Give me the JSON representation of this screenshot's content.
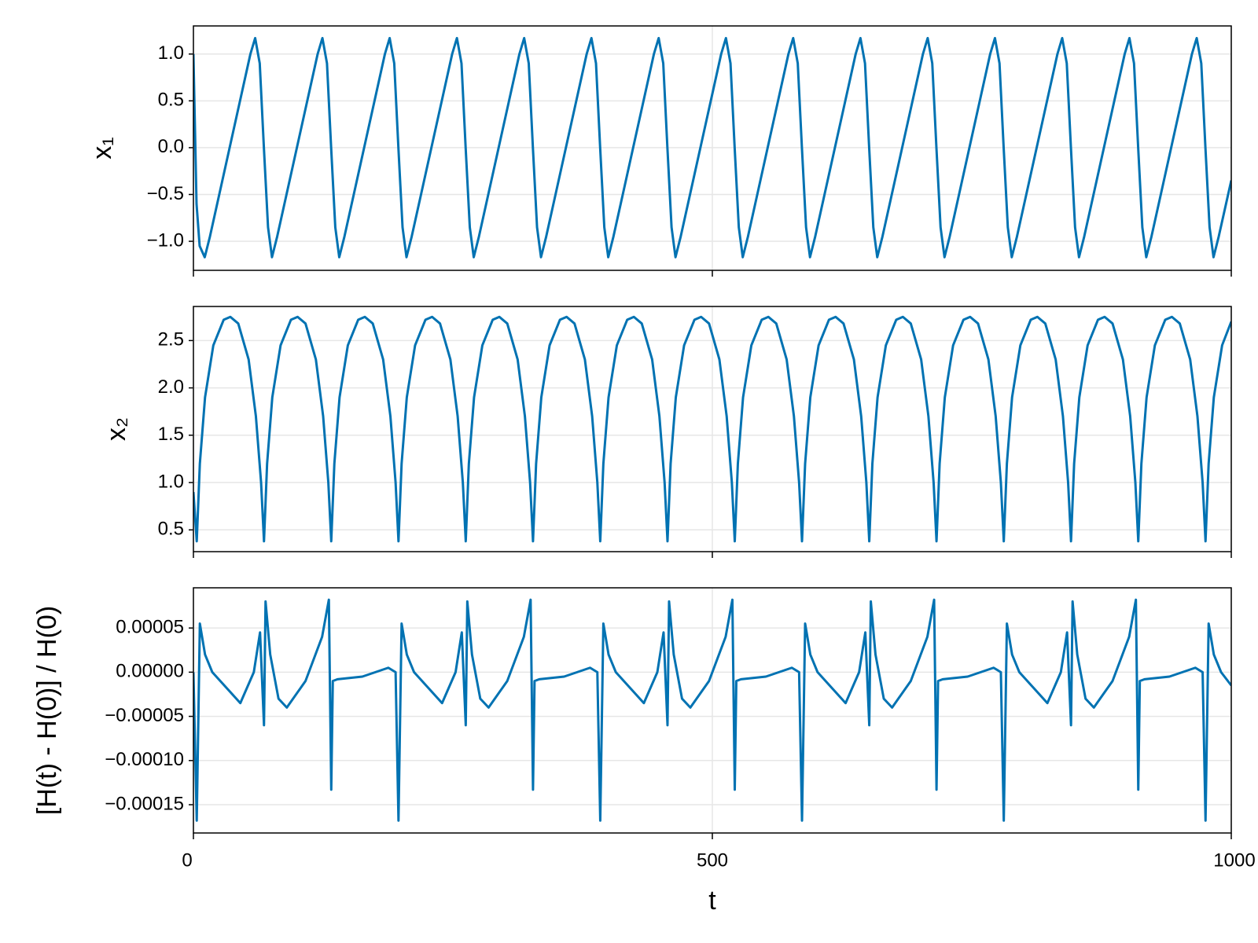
{
  "chart_data": [
    {
      "type": "line",
      "ylabel": "x₁",
      "color": "#0072b2",
      "grid": true,
      "xlim": [
        0,
        1000
      ],
      "ylim": [
        -1.31,
        1.3
      ],
      "yticks": [
        {
          "value": 1.0,
          "label": "1.0"
        },
        {
          "value": 0.5,
          "label": "0.5"
        },
        {
          "value": 0.0,
          "label": "0.0"
        },
        {
          "value": -0.5,
          "label": "−0.5"
        },
        {
          "value": -1.0,
          "label": "−1.0"
        }
      ],
      "x": [
        0,
        3,
        6,
        10.9,
        15.9,
        35.9,
        54.9,
        59.5,
        63.9,
        67.9,
        71.9,
        75.7,
        80.7,
        100.7,
        119.7,
        124.3,
        128.7,
        132.7,
        136.7,
        140.5,
        145.5,
        165.5,
        184.5,
        189.1,
        193.5,
        197.5,
        201.5,
        205.3,
        210.3,
        230.3,
        249.3,
        253.9,
        258.3,
        262.3,
        266.3,
        270.1,
        275.1,
        295.1,
        314.1,
        318.7,
        323.1,
        327.1,
        331.1,
        334.9,
        339.9,
        359.9,
        378.9,
        383.5,
        387.9,
        391.9,
        395.9,
        399.7,
        404.7,
        424.7,
        443.7,
        448.3,
        452.7,
        456.7,
        460.7,
        464.5,
        469.5,
        489.5,
        508.5,
        513.1,
        517.5,
        521.5,
        525.5,
        529.3,
        534.3,
        554.3,
        573.3,
        577.9,
        582.3,
        586.3,
        590.3,
        594.1,
        599.1,
        619.1,
        638.1,
        642.7,
        647.1,
        651.1,
        655.1,
        658.9,
        663.9,
        683.9,
        702.9,
        707.5,
        711.9,
        715.9,
        719.9,
        723.7,
        728.7,
        748.7,
        767.7,
        772.3,
        776.7,
        780.7,
        784.7,
        788.5,
        793.5,
        813.5,
        832.5,
        837.1,
        841.5,
        845.5,
        849.5,
        853.3,
        858.3,
        878.3,
        897.3,
        901.9,
        906.3,
        910.3,
        914.3,
        918.1,
        923.1,
        943.1,
        962.1,
        966.7,
        971.1,
        975.1,
        979.1,
        982.9,
        987.9,
        1000
      ],
      "values": [
        1.0,
        -0.6,
        -1.05,
        -1.17,
        -0.95,
        0.05,
        1.0,
        1.17,
        0.9,
        0.0,
        -0.85,
        -1.17,
        -0.95,
        0.05,
        1.0,
        1.17,
        0.9,
        0.0,
        -0.85,
        -1.17,
        -0.95,
        0.05,
        1.0,
        1.17,
        0.9,
        0.0,
        -0.85,
        -1.17,
        -0.95,
        0.05,
        1.0,
        1.17,
        0.9,
        0.0,
        -0.85,
        -1.17,
        -0.95,
        0.05,
        1.0,
        1.17,
        0.9,
        0.0,
        -0.85,
        -1.17,
        -0.95,
        0.05,
        1.0,
        1.17,
        0.9,
        0.0,
        -0.85,
        -1.17,
        -0.95,
        0.05,
        1.0,
        1.17,
        0.9,
        0.0,
        -0.85,
        -1.17,
        -0.95,
        0.05,
        1.0,
        1.17,
        0.9,
        0.0,
        -0.85,
        -1.17,
        -0.95,
        0.05,
        1.0,
        1.17,
        0.9,
        0.0,
        -0.85,
        -1.17,
        -0.95,
        0.05,
        1.0,
        1.17,
        0.9,
        0.0,
        -0.85,
        -1.17,
        -0.95,
        0.05,
        1.0,
        1.17,
        0.9,
        0.0,
        -0.85,
        -1.17,
        -0.95,
        0.05,
        1.0,
        1.17,
        0.9,
        0.0,
        -0.85,
        -1.17,
        -0.95,
        0.05,
        1.0,
        1.17,
        0.9,
        0.0,
        -0.85,
        -1.17,
        -0.95,
        0.05,
        1.0,
        1.17,
        0.9,
        0.0,
        -0.85,
        -1.17,
        -0.95,
        0.05,
        1.0,
        1.17,
        0.9,
        0.0,
        -0.85,
        -1.17,
        -0.95,
        -0.35
      ]
    },
    {
      "type": "line",
      "ylabel": "x₂",
      "color": "#0072b2",
      "grid": true,
      "xlim": [
        0,
        1000
      ],
      "ylim": [
        0.27,
        2.86
      ],
      "yticks": [
        2.5,
        {
          "value": 2.0,
          "label": "2.0"
        },
        1.5,
        {
          "value": 1.0,
          "label": "1.0"
        },
        0.5
      ],
      "x": [
        0,
        3.2,
        6.2,
        11.2,
        19.2,
        29.2,
        35.6,
        43.2,
        53.2,
        60.2,
        65.2,
        68,
        71,
        76,
        84,
        94,
        100.4,
        108,
        118,
        125,
        130,
        132.8,
        135.8,
        140.8,
        148.8,
        158.8,
        165.2,
        172.8,
        182.8,
        189.8,
        194.8,
        197.6,
        200.6,
        205.6,
        213.6,
        223.6,
        230,
        237.6,
        247.6,
        254.6,
        259.6,
        262.4,
        265.4,
        270.4,
        278.4,
        288.4,
        294.8,
        302.4,
        312.4,
        319.4,
        324.4,
        327.2,
        330.2,
        335.2,
        343.2,
        353.2,
        359.6,
        367.2,
        377.2,
        384.2,
        389.2,
        392,
        395,
        400,
        408,
        418,
        424.4,
        432,
        442,
        449,
        454,
        456.8,
        459.8,
        464.8,
        472.8,
        482.8,
        489.2,
        496.8,
        506.8,
        513.8,
        518.8,
        521.6,
        524.6,
        529.6,
        537.6,
        547.6,
        554,
        561.6,
        571.6,
        578.6,
        583.6,
        586.4,
        589.4,
        594.4,
        602.4,
        612.4,
        618.8,
        626.4,
        636.4,
        643.4,
        648.4,
        651.2,
        654.2,
        659.2,
        667.2,
        677.2,
        683.6,
        691.2,
        701.2,
        708.2,
        713.2,
        716,
        719,
        724,
        732,
        742,
        748.4,
        756,
        766,
        773,
        778,
        780.8,
        783.8,
        788.8,
        796.8,
        806.8,
        813.2,
        820.8,
        830.8,
        837.8,
        842.8,
        845.6,
        848.6,
        853.6,
        861.6,
        871.6,
        878,
        885.6,
        895.6,
        902.6,
        907.6,
        910.4,
        913.4,
        918.4,
        926.4,
        936.4,
        942.8,
        950.4,
        960.4,
        967.4,
        972.4,
        975.2,
        978.2,
        983.2,
        991.2,
        1000
      ],
      "values": [
        0.9,
        0.38,
        1.2,
        1.9,
        2.45,
        2.72,
        2.75,
        2.68,
        2.3,
        1.7,
        1.0,
        0.38,
        1.2,
        1.9,
        2.45,
        2.72,
        2.75,
        2.68,
        2.3,
        1.7,
        1.0,
        0.38,
        1.2,
        1.9,
        2.45,
        2.72,
        2.75,
        2.68,
        2.3,
        1.7,
        1.0,
        0.38,
        1.2,
        1.9,
        2.45,
        2.72,
        2.75,
        2.68,
        2.3,
        1.7,
        1.0,
        0.38,
        1.2,
        1.9,
        2.45,
        2.72,
        2.75,
        2.68,
        2.3,
        1.7,
        1.0,
        0.38,
        1.2,
        1.9,
        2.45,
        2.72,
        2.75,
        2.68,
        2.3,
        1.7,
        1.0,
        0.38,
        1.2,
        1.9,
        2.45,
        2.72,
        2.75,
        2.68,
        2.3,
        1.7,
        1.0,
        0.38,
        1.2,
        1.9,
        2.45,
        2.72,
        2.75,
        2.68,
        2.3,
        1.7,
        1.0,
        0.38,
        1.2,
        1.9,
        2.45,
        2.72,
        2.75,
        2.68,
        2.3,
        1.7,
        1.0,
        0.38,
        1.2,
        1.9,
        2.45,
        2.72,
        2.75,
        2.68,
        2.3,
        1.7,
        1.0,
        0.38,
        1.2,
        1.9,
        2.45,
        2.72,
        2.75,
        2.68,
        2.3,
        1.7,
        1.0,
        0.38,
        1.2,
        1.9,
        2.45,
        2.72,
        2.75,
        2.68,
        2.3,
        1.7,
        1.0,
        0.38,
        1.2,
        1.9,
        2.45,
        2.72,
        2.75,
        2.68,
        2.3,
        1.7,
        1.0,
        0.38,
        1.2,
        1.9,
        2.45,
        2.72,
        2.75,
        2.68,
        2.3,
        1.7,
        1.0,
        0.38,
        1.2,
        1.9,
        2.45,
        2.72,
        2.75,
        2.68,
        2.3,
        1.7,
        1.0,
        0.38,
        1.2,
        1.9,
        2.45,
        2.7
      ]
    },
    {
      "type": "line",
      "ylabel": "[H(t) - H(0)] / H(0)",
      "xlabel": "t",
      "color": "#0072b2",
      "grid": true,
      "xlim": [
        0,
        1000
      ],
      "ylim": [
        -0.000182,
        9.55e-05
      ],
      "xticks": [
        0,
        500,
        1000
      ],
      "yticks": [
        {
          "value": 5e-05,
          "label": "0.00005"
        },
        {
          "value": 0,
          "label": "0.00000"
        },
        {
          "value": -5e-05,
          "label": "−0.00005"
        },
        {
          "value": -0.0001,
          "label": "−0.00010"
        },
        {
          "value": -0.00015,
          "label": "−0.00015"
        }
      ],
      "x": [
        0,
        3.2,
        6.2,
        11.2,
        18.2,
        45.2,
        58.2,
        64.2,
        68,
        69.5,
        74,
        82,
        90,
        108,
        124,
        130.5,
        132.8,
        134.3,
        138.8,
        162.8,
        187.8,
        194.8,
        197.6,
        200.6,
        205.6,
        212.6,
        239.6,
        252.6,
        258.6,
        262.4,
        263.9,
        268.4,
        276.4,
        284.4,
        302.4,
        318.4,
        324.9,
        327.2,
        328.7,
        333.2,
        357.2,
        382.2,
        389.2,
        392,
        395,
        400,
        407,
        434,
        447,
        453,
        456.8,
        458.3,
        462.8,
        470.8,
        478.8,
        496.8,
        512.8,
        519.3,
        521.6,
        523.1,
        527.6,
        551.6,
        576.6,
        583.6,
        586.4,
        589.4,
        594.4,
        601.4,
        628.4,
        641.4,
        647.4,
        651.2,
        652.7,
        657.2,
        665.2,
        673.2,
        691.2,
        707.2,
        713.7,
        716,
        717.5,
        722,
        746,
        771,
        778,
        780.8,
        783.8,
        788.8,
        795.8,
        822.8,
        835.8,
        841.8,
        845.6,
        847.1,
        851.6,
        859.6,
        867.6,
        885.6,
        901.6,
        908.1,
        910.4,
        911.9,
        916.4,
        940.4,
        965.4,
        972.4,
        975.2,
        978.2,
        983.2,
        990.2,
        1000
      ],
      "values": [
        0,
        -0.000168,
        5.5e-05,
        2e-05,
        0,
        -3.5e-05,
        0,
        4.5e-05,
        -6e-05,
        8e-05,
        2e-05,
        -3e-05,
        -4e-05,
        -1e-05,
        4e-05,
        8.2e-05,
        -0.000133,
        -1e-05,
        -8e-06,
        -5e-06,
        5e-06,
        0,
        -0.000168,
        5.5e-05,
        2e-05,
        0,
        -3.5e-05,
        0,
        4.5e-05,
        -6e-05,
        8e-05,
        2e-05,
        -3e-05,
        -4e-05,
        -1e-05,
        4e-05,
        8.2e-05,
        -0.000133,
        -1e-05,
        -8e-06,
        -5e-06,
        5e-06,
        0,
        -0.000168,
        5.5e-05,
        2e-05,
        0,
        -3.5e-05,
        0,
        4.5e-05,
        -6e-05,
        8e-05,
        2e-05,
        -3e-05,
        -4e-05,
        -1e-05,
        4e-05,
        8.2e-05,
        -0.000133,
        -1e-05,
        -8e-06,
        -5e-06,
        5e-06,
        0,
        -0.000168,
        5.5e-05,
        2e-05,
        0,
        -3.5e-05,
        0,
        4.5e-05,
        -6e-05,
        8e-05,
        2e-05,
        -3e-05,
        -4e-05,
        -1e-05,
        4e-05,
        8.2e-05,
        -0.000133,
        -1e-05,
        -8e-06,
        -5e-06,
        5e-06,
        0,
        -0.000168,
        5.5e-05,
        2e-05,
        0,
        -3.5e-05,
        0,
        4.5e-05,
        -6e-05,
        8e-05,
        2e-05,
        -3e-05,
        -4e-05,
        -1e-05,
        4e-05,
        8.2e-05,
        -0.000133,
        -1e-05,
        -8e-06,
        -5e-06,
        5e-06,
        0,
        -0.000168,
        5.5e-05,
        2e-05,
        0,
        -1.5e-05
      ]
    }
  ]
}
